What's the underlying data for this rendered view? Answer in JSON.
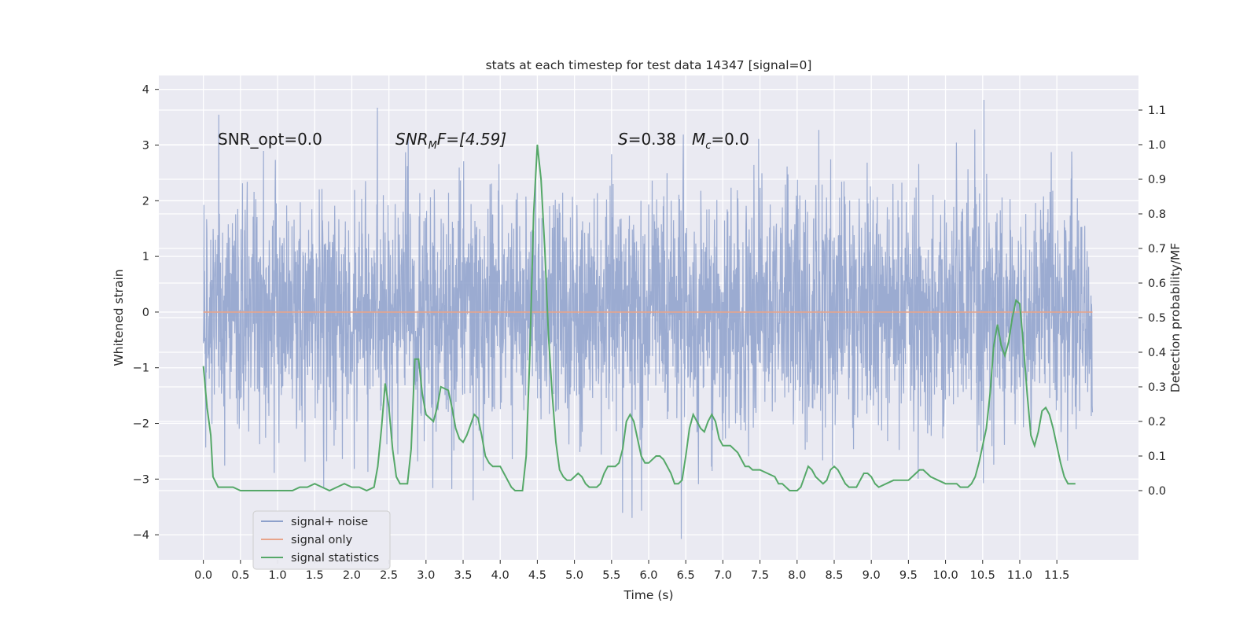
{
  "chart_data": {
    "type": "line",
    "title": "stats at each timestep for test data 14347 [signal=0]",
    "xlabel": "Time (s)",
    "ylabel": "Whitened strain",
    "ylabel_right": "Detection probability/MF",
    "xlim": [
      -0.6,
      12.6
    ],
    "ylim": [
      -4.45,
      4.25
    ],
    "ylim_right": [
      -0.2,
      1.2
    ],
    "x_ticks": [
      "0.0",
      "0.5",
      "1.0",
      "1.5",
      "2.0",
      "2.5",
      "3.0",
      "3.5",
      "4.0",
      "4.5",
      "5.0",
      "5.5",
      "6.0",
      "6.5",
      "7.0",
      "7.5",
      "8.0",
      "8.5",
      "9.0",
      "9.5",
      "10.0",
      "10.5",
      "11.0",
      "11.5"
    ],
    "y_ticks": [
      4,
      3,
      2,
      1,
      0,
      -1,
      -2,
      -3,
      -4
    ],
    "y_ticks_right": [
      "1.1",
      "1.0",
      "0.9",
      "0.8",
      "0.7",
      "0.6",
      "0.5",
      "0.4",
      "0.3",
      "0.2",
      "0.1",
      "0.0"
    ],
    "grid": true,
    "legend_position": "bottom-left",
    "annotations": [
      {
        "prefix": "SNR_opt=0.0",
        "sub": "",
        "suffix": ""
      },
      {
        "prefix": "SNR",
        "sub": "M",
        "suffix": "F=[4.59]"
      },
      {
        "prefix": "S",
        "sub": "",
        "suffix": "=0.38"
      },
      {
        "prefix": "M",
        "sub": "c",
        "suffix": "=0.0"
      }
    ],
    "series": [
      {
        "name": "signal+ noise",
        "color": "#8da0cb",
        "description": "whitened noise, 4096 Hz for ~12 s, approx. Gaussian sigma 1, extremes about ±3.9",
        "x_range": [
          0,
          11.98
        ],
        "stats": {
          "min": -4.1,
          "max": 3.9,
          "mean": 0.0,
          "std": 1.0
        }
      },
      {
        "name": "signal only",
        "color": "#e8a48a",
        "x": [
          0,
          11.98
        ],
        "y": [
          0,
          0
        ]
      },
      {
        "name": "signal statistics",
        "color": "#55a868",
        "axis": "right",
        "points": [
          [
            0.0,
            0.36
          ],
          [
            0.05,
            0.24
          ],
          [
            0.1,
            0.16
          ],
          [
            0.13,
            0.04
          ],
          [
            0.2,
            0.01
          ],
          [
            0.3,
            0.01
          ],
          [
            0.4,
            0.01
          ],
          [
            0.5,
            0.0
          ],
          [
            0.6,
            0.0
          ],
          [
            0.7,
            0.0
          ],
          [
            0.8,
            0.0
          ],
          [
            0.9,
            0.0
          ],
          [
            1.0,
            0.0
          ],
          [
            1.1,
            0.0
          ],
          [
            1.2,
            0.0
          ],
          [
            1.3,
            0.01
          ],
          [
            1.4,
            0.01
          ],
          [
            1.5,
            0.02
          ],
          [
            1.6,
            0.01
          ],
          [
            1.7,
            0.0
          ],
          [
            1.8,
            0.01
          ],
          [
            1.9,
            0.02
          ],
          [
            2.0,
            0.01
          ],
          [
            2.1,
            0.01
          ],
          [
            2.2,
            0.0
          ],
          [
            2.3,
            0.01
          ],
          [
            2.35,
            0.07
          ],
          [
            2.4,
            0.18
          ],
          [
            2.45,
            0.31
          ],
          [
            2.5,
            0.24
          ],
          [
            2.55,
            0.12
          ],
          [
            2.6,
            0.04
          ],
          [
            2.65,
            0.02
          ],
          [
            2.75,
            0.02
          ],
          [
            2.8,
            0.12
          ],
          [
            2.85,
            0.38
          ],
          [
            2.9,
            0.38
          ],
          [
            2.95,
            0.28
          ],
          [
            3.0,
            0.22
          ],
          [
            3.1,
            0.2
          ],
          [
            3.15,
            0.24
          ],
          [
            3.2,
            0.3
          ],
          [
            3.3,
            0.29
          ],
          [
            3.35,
            0.24
          ],
          [
            3.4,
            0.18
          ],
          [
            3.45,
            0.15
          ],
          [
            3.5,
            0.14
          ],
          [
            3.55,
            0.16
          ],
          [
            3.6,
            0.19
          ],
          [
            3.65,
            0.22
          ],
          [
            3.7,
            0.21
          ],
          [
            3.75,
            0.16
          ],
          [
            3.8,
            0.1
          ],
          [
            3.85,
            0.08
          ],
          [
            3.9,
            0.07
          ],
          [
            4.0,
            0.07
          ],
          [
            4.05,
            0.05
          ],
          [
            4.1,
            0.03
          ],
          [
            4.15,
            0.01
          ],
          [
            4.2,
            0.0
          ],
          [
            4.3,
            0.0
          ],
          [
            4.35,
            0.1
          ],
          [
            4.4,
            0.4
          ],
          [
            4.45,
            0.8
          ],
          [
            4.5,
            1.0
          ],
          [
            4.55,
            0.9
          ],
          [
            4.6,
            0.7
          ],
          [
            4.65,
            0.45
          ],
          [
            4.7,
            0.28
          ],
          [
            4.75,
            0.14
          ],
          [
            4.8,
            0.06
          ],
          [
            4.85,
            0.04
          ],
          [
            4.9,
            0.03
          ],
          [
            4.95,
            0.03
          ],
          [
            5.0,
            0.04
          ],
          [
            5.05,
            0.05
          ],
          [
            5.1,
            0.04
          ],
          [
            5.15,
            0.02
          ],
          [
            5.2,
            0.01
          ],
          [
            5.3,
            0.01
          ],
          [
            5.35,
            0.02
          ],
          [
            5.4,
            0.05
          ],
          [
            5.45,
            0.07
          ],
          [
            5.5,
            0.07
          ],
          [
            5.55,
            0.07
          ],
          [
            5.6,
            0.08
          ],
          [
            5.65,
            0.12
          ],
          [
            5.7,
            0.2
          ],
          [
            5.75,
            0.22
          ],
          [
            5.8,
            0.2
          ],
          [
            5.85,
            0.15
          ],
          [
            5.9,
            0.1
          ],
          [
            5.95,
            0.08
          ],
          [
            6.0,
            0.08
          ],
          [
            6.1,
            0.1
          ],
          [
            6.15,
            0.1
          ],
          [
            6.2,
            0.09
          ],
          [
            6.3,
            0.05
          ],
          [
            6.35,
            0.02
          ],
          [
            6.4,
            0.02
          ],
          [
            6.45,
            0.03
          ],
          [
            6.5,
            0.1
          ],
          [
            6.55,
            0.18
          ],
          [
            6.6,
            0.22
          ],
          [
            6.65,
            0.2
          ],
          [
            6.7,
            0.18
          ],
          [
            6.75,
            0.17
          ],
          [
            6.8,
            0.2
          ],
          [
            6.85,
            0.22
          ],
          [
            6.9,
            0.2
          ],
          [
            6.95,
            0.15
          ],
          [
            7.0,
            0.13
          ],
          [
            7.1,
            0.13
          ],
          [
            7.15,
            0.12
          ],
          [
            7.2,
            0.11
          ],
          [
            7.3,
            0.07
          ],
          [
            7.35,
            0.07
          ],
          [
            7.4,
            0.06
          ],
          [
            7.5,
            0.06
          ],
          [
            7.6,
            0.05
          ],
          [
            7.7,
            0.04
          ],
          [
            7.75,
            0.02
          ],
          [
            7.8,
            0.02
          ],
          [
            7.9,
            0.0
          ],
          [
            8.0,
            0.0
          ],
          [
            8.05,
            0.01
          ],
          [
            8.1,
            0.04
          ],
          [
            8.15,
            0.07
          ],
          [
            8.2,
            0.06
          ],
          [
            8.25,
            0.04
          ],
          [
            8.3,
            0.03
          ],
          [
            8.35,
            0.02
          ],
          [
            8.4,
            0.03
          ],
          [
            8.45,
            0.06
          ],
          [
            8.5,
            0.07
          ],
          [
            8.55,
            0.06
          ],
          [
            8.6,
            0.04
          ],
          [
            8.65,
            0.02
          ],
          [
            8.7,
            0.01
          ],
          [
            8.8,
            0.01
          ],
          [
            8.85,
            0.03
          ],
          [
            8.9,
            0.05
          ],
          [
            8.95,
            0.05
          ],
          [
            9.0,
            0.04
          ],
          [
            9.05,
            0.02
          ],
          [
            9.1,
            0.01
          ],
          [
            9.2,
            0.02
          ],
          [
            9.3,
            0.03
          ],
          [
            9.4,
            0.03
          ],
          [
            9.5,
            0.03
          ],
          [
            9.55,
            0.04
          ],
          [
            9.6,
            0.05
          ],
          [
            9.65,
            0.06
          ],
          [
            9.7,
            0.06
          ],
          [
            9.75,
            0.05
          ],
          [
            9.8,
            0.04
          ],
          [
            9.9,
            0.03
          ],
          [
            10.0,
            0.02
          ],
          [
            10.1,
            0.02
          ],
          [
            10.15,
            0.02
          ],
          [
            10.2,
            0.01
          ],
          [
            10.3,
            0.01
          ],
          [
            10.35,
            0.02
          ],
          [
            10.4,
            0.04
          ],
          [
            10.45,
            0.08
          ],
          [
            10.5,
            0.13
          ],
          [
            10.55,
            0.18
          ],
          [
            10.6,
            0.28
          ],
          [
            10.65,
            0.42
          ],
          [
            10.7,
            0.48
          ],
          [
            10.75,
            0.42
          ],
          [
            10.8,
            0.39
          ],
          [
            10.85,
            0.43
          ],
          [
            10.9,
            0.5
          ],
          [
            10.95,
            0.55
          ],
          [
            11.0,
            0.54
          ],
          [
            11.05,
            0.42
          ],
          [
            11.1,
            0.28
          ],
          [
            11.15,
            0.16
          ],
          [
            11.2,
            0.13
          ],
          [
            11.25,
            0.17
          ],
          [
            11.3,
            0.23
          ],
          [
            11.35,
            0.24
          ],
          [
            11.4,
            0.22
          ],
          [
            11.45,
            0.18
          ],
          [
            11.5,
            0.13
          ],
          [
            11.55,
            0.08
          ],
          [
            11.6,
            0.04
          ],
          [
            11.65,
            0.02
          ],
          [
            11.7,
            0.02
          ],
          [
            11.75,
            0.02
          ]
        ]
      }
    ]
  }
}
